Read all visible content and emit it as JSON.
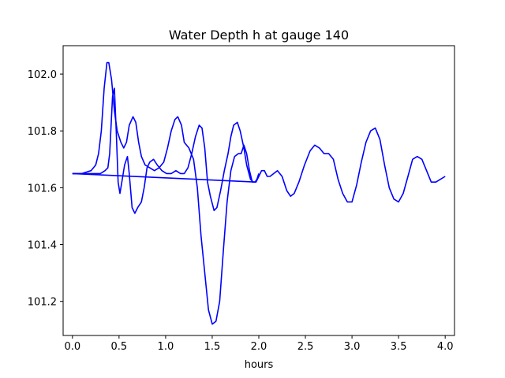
{
  "chart_data": {
    "type": "line",
    "title": "Water Depth h at gauge 140",
    "xlabel": "hours",
    "ylabel": "",
    "xlim": [
      -0.1,
      4.1
    ],
    "ylim": [
      101.08,
      102.1
    ],
    "xticks": [
      0.0,
      0.5,
      1.0,
      1.5,
      2.0,
      2.5,
      3.0,
      3.5,
      4.0
    ],
    "xtick_labels": [
      "0.0",
      "0.5",
      "1.0",
      "1.5",
      "2.0",
      "2.5",
      "3.0",
      "3.5",
      "4.0"
    ],
    "yticks": [
      101.2,
      101.4,
      101.6,
      101.8,
      102.0
    ],
    "ytick_labels": [
      "101.2",
      "101.4",
      "101.6",
      "101.8",
      "102.0"
    ],
    "grid": false,
    "legend": "none",
    "color": "#0000ff",
    "series": [
      {
        "name": "",
        "points": [
          [
            0.0,
            101.65
          ],
          [
            0.1,
            101.65
          ],
          [
            0.2,
            101.66
          ],
          [
            0.25,
            101.68
          ],
          [
            0.28,
            101.72
          ],
          [
            0.31,
            101.8
          ],
          [
            0.34,
            101.95
          ],
          [
            0.37,
            102.04
          ],
          [
            0.39,
            102.04
          ],
          [
            0.42,
            101.98
          ],
          [
            0.45,
            101.87
          ],
          [
            0.48,
            101.8
          ],
          [
            0.52,
            101.76
          ],
          [
            0.55,
            101.74
          ],
          [
            0.58,
            101.76
          ],
          [
            0.61,
            101.82
          ],
          [
            0.65,
            101.85
          ],
          [
            0.68,
            101.83
          ],
          [
            0.71,
            101.76
          ],
          [
            0.74,
            101.71
          ],
          [
            0.78,
            101.68
          ],
          [
            0.83,
            101.67
          ],
          [
            0.88,
            101.66
          ],
          [
            0.93,
            101.67
          ],
          [
            0.98,
            101.69
          ],
          [
            1.02,
            101.74
          ],
          [
            1.06,
            101.8
          ],
          [
            1.1,
            101.84
          ],
          [
            1.13,
            101.85
          ],
          [
            1.17,
            101.82
          ],
          [
            1.2,
            101.76
          ],
          [
            1.25,
            101.74
          ],
          [
            1.3,
            101.7
          ],
          [
            1.34,
            101.6
          ],
          [
            1.38,
            101.43
          ],
          [
            1.42,
            101.3
          ],
          [
            1.46,
            101.17
          ],
          [
            1.5,
            101.12
          ],
          [
            1.54,
            101.13
          ],
          [
            1.58,
            101.2
          ],
          [
            1.62,
            101.38
          ],
          [
            1.66,
            101.55
          ],
          [
            1.7,
            101.66
          ],
          [
            1.74,
            101.71
          ],
          [
            1.78,
            101.72
          ],
          [
            1.81,
            101.72
          ],
          [
            1.84,
            101.75
          ],
          [
            1.87,
            101.72
          ],
          [
            1.9,
            101.66
          ],
          [
            1.93,
            101.62
          ],
          [
            1.96,
            101.62
          ],
          [
            1.98,
            101.63
          ],
          [
            2.0,
            101.65
          ]
        ]
      },
      {
        "name": "",
        "points": [
          [
            0.0,
            101.65
          ],
          [
            0.2,
            101.65
          ],
          [
            0.3,
            101.65
          ],
          [
            0.35,
            101.66
          ],
          [
            0.38,
            101.67
          ],
          [
            0.4,
            101.72
          ],
          [
            0.43,
            101.92
          ],
          [
            0.45,
            101.95
          ],
          [
            0.47,
            101.8
          ],
          [
            0.49,
            101.62
          ],
          [
            0.51,
            101.58
          ],
          [
            0.53,
            101.62
          ],
          [
            0.56,
            101.68
          ],
          [
            0.59,
            101.71
          ],
          [
            0.61,
            101.65
          ],
          [
            0.64,
            101.53
          ],
          [
            0.67,
            101.51
          ],
          [
            0.7,
            101.53
          ],
          [
            0.74,
            101.55
          ],
          [
            0.77,
            101.6
          ],
          [
            0.8,
            101.67
          ],
          [
            0.83,
            101.69
          ],
          [
            0.87,
            101.7
          ],
          [
            0.91,
            101.68
          ],
          [
            0.96,
            101.66
          ],
          [
            1.01,
            101.65
          ],
          [
            1.06,
            101.65
          ],
          [
            1.11,
            101.66
          ],
          [
            1.16,
            101.65
          ],
          [
            1.2,
            101.65
          ],
          [
            1.24,
            101.67
          ],
          [
            1.28,
            101.72
          ],
          [
            1.32,
            101.78
          ],
          [
            1.36,
            101.82
          ],
          [
            1.39,
            101.81
          ],
          [
            1.42,
            101.74
          ],
          [
            1.45,
            101.62
          ],
          [
            1.48,
            101.57
          ],
          [
            1.52,
            101.52
          ],
          [
            1.55,
            101.53
          ],
          [
            1.59,
            101.59
          ],
          [
            1.63,
            101.66
          ],
          [
            1.67,
            101.72
          ],
          [
            1.7,
            101.78
          ],
          [
            1.73,
            101.82
          ],
          [
            1.77,
            101.83
          ],
          [
            1.8,
            101.8
          ],
          [
            1.84,
            101.74
          ],
          [
            1.87,
            101.68
          ],
          [
            1.91,
            101.63
          ],
          [
            1.94,
            101.62
          ],
          [
            1.97,
            101.62
          ],
          [
            2.0,
            101.64
          ],
          [
            2.03,
            101.66
          ],
          [
            2.06,
            101.66
          ],
          [
            2.09,
            101.64
          ],
          [
            2.12,
            101.64
          ],
          [
            2.16,
            101.65
          ],
          [
            2.2,
            101.66
          ],
          [
            2.25,
            101.64
          ],
          [
            2.3,
            101.59
          ],
          [
            2.34,
            101.57
          ],
          [
            2.38,
            101.58
          ],
          [
            2.43,
            101.62
          ],
          [
            2.49,
            101.68
          ],
          [
            2.55,
            101.73
          ],
          [
            2.6,
            101.75
          ],
          [
            2.65,
            101.74
          ],
          [
            2.7,
            101.72
          ],
          [
            2.75,
            101.72
          ],
          [
            2.8,
            101.7
          ],
          [
            2.85,
            101.63
          ],
          [
            2.9,
            101.58
          ],
          [
            2.95,
            101.55
          ],
          [
            3.0,
            101.55
          ],
          [
            3.05,
            101.61
          ],
          [
            3.1,
            101.69
          ],
          [
            3.15,
            101.76
          ],
          [
            3.2,
            101.8
          ],
          [
            3.25,
            101.81
          ],
          [
            3.3,
            101.77
          ],
          [
            3.35,
            101.68
          ],
          [
            3.4,
            101.6
          ],
          [
            3.45,
            101.56
          ],
          [
            3.5,
            101.55
          ],
          [
            3.55,
            101.58
          ],
          [
            3.6,
            101.64
          ],
          [
            3.65,
            101.7
          ],
          [
            3.7,
            101.71
          ],
          [
            3.75,
            101.7
          ],
          [
            3.8,
            101.66
          ],
          [
            3.85,
            101.62
          ],
          [
            3.9,
            101.62
          ],
          [
            3.95,
            101.63
          ],
          [
            4.0,
            101.64
          ]
        ]
      },
      {
        "name": "",
        "points": [
          [
            0.0,
            101.65
          ],
          [
            1.97,
            101.62
          ]
        ]
      }
    ]
  }
}
